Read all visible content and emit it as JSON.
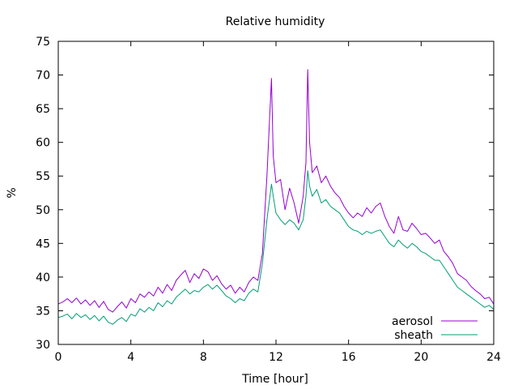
{
  "chart_data": {
    "type": "line",
    "title": "Relative humidity",
    "xlabel": "Time [hour]",
    "ylabel": "%",
    "xlim": [
      0,
      24
    ],
    "ylim": [
      30,
      75
    ],
    "xticks": [
      0,
      4,
      8,
      12,
      16,
      20,
      24
    ],
    "yticks": [
      30,
      35,
      40,
      45,
      50,
      55,
      60,
      65,
      70,
      75
    ],
    "grid": false,
    "legend": "bottom-right",
    "series": [
      {
        "name": "aerosol",
        "color": "#9400d3",
        "x": [
          0,
          0.25,
          0.5,
          0.75,
          1,
          1.25,
          1.5,
          1.75,
          2,
          2.25,
          2.5,
          2.75,
          3,
          3.25,
          3.5,
          3.75,
          4,
          4.25,
          4.5,
          4.75,
          5,
          5.25,
          5.5,
          5.75,
          6,
          6.25,
          6.5,
          6.75,
          7,
          7.25,
          7.5,
          7.75,
          8,
          8.25,
          8.5,
          8.75,
          9,
          9.25,
          9.5,
          9.75,
          10,
          10.25,
          10.5,
          10.75,
          11,
          11.25,
          11.5,
          11.75,
          11.85,
          12,
          12.25,
          12.5,
          12.75,
          13,
          13.25,
          13.5,
          13.65,
          13.75,
          13.85,
          14,
          14.25,
          14.5,
          14.75,
          15,
          15.25,
          15.5,
          15.75,
          16,
          16.25,
          16.5,
          16.75,
          17,
          17.25,
          17.5,
          17.75,
          18,
          18.25,
          18.5,
          18.75,
          19,
          19.25,
          19.5,
          19.75,
          20,
          20.25,
          20.5,
          20.75,
          21,
          21.25,
          21.5,
          21.75,
          22,
          22.25,
          22.5,
          22.75,
          23,
          23.25,
          23.5,
          23.75,
          24
        ],
        "y": [
          36.0,
          36.3,
          36.8,
          36.2,
          36.9,
          36.0,
          36.6,
          35.8,
          36.5,
          35.5,
          36.4,
          35.2,
          34.8,
          35.6,
          36.3,
          35.4,
          36.8,
          36.2,
          37.5,
          37.0,
          37.8,
          37.2,
          38.5,
          37.6,
          38.9,
          38.0,
          39.5,
          40.3,
          41.0,
          39.2,
          40.5,
          39.8,
          41.2,
          40.8,
          39.5,
          40.2,
          39.0,
          38.2,
          38.8,
          37.6,
          38.5,
          37.8,
          39.2,
          40.0,
          39.5,
          43.5,
          55.0,
          69.5,
          58.0,
          54.0,
          54.5,
          50.0,
          53.2,
          51.0,
          48.0,
          52.0,
          57.0,
          70.8,
          60.0,
          55.5,
          56.5,
          54.0,
          55.0,
          53.5,
          52.5,
          51.8,
          50.5,
          49.5,
          48.8,
          49.5,
          49.0,
          50.3,
          49.5,
          50.5,
          51.0,
          49.0,
          47.5,
          46.5,
          49.0,
          47.0,
          46.8,
          48.0,
          47.2,
          46.3,
          46.5,
          45.8,
          45.0,
          45.5,
          43.8,
          43.0,
          42.0,
          40.5,
          40.0,
          39.5,
          38.6,
          38.0,
          37.5,
          36.8,
          37.0,
          36.0
        ]
      },
      {
        "name": "sheath",
        "color": "#009e73",
        "x": [
          0,
          0.25,
          0.5,
          0.75,
          1,
          1.25,
          1.5,
          1.75,
          2,
          2.25,
          2.5,
          2.75,
          3,
          3.25,
          3.5,
          3.75,
          4,
          4.25,
          4.5,
          4.75,
          5,
          5.25,
          5.5,
          5.75,
          6,
          6.25,
          6.5,
          6.75,
          7,
          7.25,
          7.5,
          7.75,
          8,
          8.25,
          8.5,
          8.75,
          9,
          9.25,
          9.5,
          9.75,
          10,
          10.25,
          10.5,
          10.75,
          11,
          11.25,
          11.5,
          11.75,
          11.85,
          12,
          12.25,
          12.5,
          12.75,
          13,
          13.25,
          13.5,
          13.65,
          13.75,
          13.85,
          14,
          14.25,
          14.5,
          14.75,
          15,
          15.25,
          15.5,
          15.75,
          16,
          16.25,
          16.5,
          16.75,
          17,
          17.25,
          17.5,
          17.75,
          18,
          18.25,
          18.5,
          18.75,
          19,
          19.25,
          19.5,
          19.75,
          20,
          20.25,
          20.5,
          20.75,
          21,
          21.25,
          21.5,
          21.75,
          22,
          22.25,
          22.5,
          22.75,
          23,
          23.25,
          23.5,
          23.75,
          24
        ],
        "y": [
          34.0,
          34.2,
          34.5,
          33.8,
          34.6,
          34.0,
          34.4,
          33.7,
          34.3,
          33.5,
          34.2,
          33.3,
          33.0,
          33.6,
          34.0,
          33.4,
          34.5,
          34.2,
          35.3,
          34.8,
          35.5,
          35.0,
          36.2,
          35.6,
          36.5,
          36.0,
          37.0,
          37.6,
          38.2,
          37.5,
          38.0,
          37.8,
          38.5,
          38.9,
          38.2,
          38.8,
          38.0,
          37.2,
          36.8,
          36.2,
          36.8,
          36.5,
          37.6,
          38.2,
          37.8,
          42.0,
          48.5,
          53.8,
          52.0,
          49.5,
          48.5,
          47.8,
          48.5,
          48.0,
          47.0,
          48.5,
          52.0,
          55.8,
          53.5,
          52.0,
          53.0,
          51.0,
          51.5,
          50.5,
          50.0,
          49.5,
          48.5,
          47.5,
          47.0,
          46.8,
          46.3,
          46.8,
          46.5,
          46.8,
          47.0,
          46.0,
          45.0,
          44.5,
          45.5,
          44.8,
          44.3,
          45.0,
          44.5,
          43.8,
          43.5,
          43.0,
          42.5,
          42.5,
          41.5,
          40.5,
          39.5,
          38.5,
          38.0,
          37.5,
          37.0,
          36.5,
          36.0,
          35.5,
          35.8,
          35.2
        ]
      }
    ]
  }
}
